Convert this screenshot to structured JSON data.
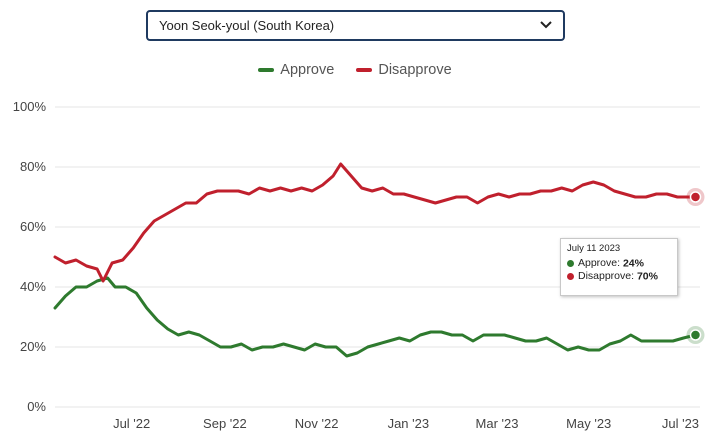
{
  "selector": {
    "label": "Yoon Seok-youl (South Korea)",
    "icon": "chevron-down-icon"
  },
  "legend": [
    {
      "label": "Approve",
      "color": "#2e7a2e"
    },
    {
      "label": "Disapprove",
      "color": "#c0202d"
    }
  ],
  "tooltip": {
    "date": "July 11 2023",
    "rows": [
      {
        "name": "Approve:",
        "value": "24%",
        "color": "#2e7a2e"
      },
      {
        "name": "Disapprove:",
        "value": "70%",
        "color": "#c0202d"
      }
    ]
  },
  "chart_data": {
    "type": "line",
    "y_ticks": [
      "100%",
      "80%",
      "60%",
      "40%",
      "20%",
      "0%"
    ],
    "ylim": [
      0,
      100
    ],
    "x_ticks": [
      "Jul '22",
      "Sep '22",
      "Nov '22",
      "Jan '23",
      "Mar '23",
      "May '23",
      "Jul '23"
    ],
    "x_tick_dates": [
      "2022-07-01",
      "2022-09-01",
      "2022-11-01",
      "2023-01-01",
      "2023-03-01",
      "2023-05-01",
      "2023-07-01"
    ],
    "xlim": [
      "2022-05-11",
      "2023-07-14"
    ],
    "grid": true,
    "legend_position": "top-center",
    "series": [
      {
        "name": "Approve",
        "color": "#2e7a2e",
        "points": [
          [
            "2022-05-11",
            33
          ],
          [
            "2022-05-18",
            37
          ],
          [
            "2022-05-25",
            40
          ],
          [
            "2022-06-01",
            40
          ],
          [
            "2022-06-08",
            42
          ],
          [
            "2022-06-15",
            43
          ],
          [
            "2022-06-20",
            40
          ],
          [
            "2022-06-27",
            40
          ],
          [
            "2022-07-04",
            38
          ],
          [
            "2022-07-11",
            33
          ],
          [
            "2022-07-18",
            29
          ],
          [
            "2022-07-25",
            26
          ],
          [
            "2022-08-01",
            24
          ],
          [
            "2022-08-08",
            25
          ],
          [
            "2022-08-15",
            24
          ],
          [
            "2022-08-22",
            22
          ],
          [
            "2022-08-29",
            20
          ],
          [
            "2022-09-05",
            20
          ],
          [
            "2022-09-12",
            21
          ],
          [
            "2022-09-19",
            19
          ],
          [
            "2022-09-26",
            20
          ],
          [
            "2022-10-03",
            20
          ],
          [
            "2022-10-10",
            21
          ],
          [
            "2022-10-17",
            20
          ],
          [
            "2022-10-24",
            19
          ],
          [
            "2022-10-31",
            21
          ],
          [
            "2022-11-07",
            20
          ],
          [
            "2022-11-14",
            20
          ],
          [
            "2022-11-21",
            17
          ],
          [
            "2022-11-28",
            18
          ],
          [
            "2022-12-05",
            20
          ],
          [
            "2022-12-12",
            21
          ],
          [
            "2022-12-19",
            22
          ],
          [
            "2022-12-26",
            23
          ],
          [
            "2023-01-02",
            22
          ],
          [
            "2023-01-09",
            24
          ],
          [
            "2023-01-16",
            25
          ],
          [
            "2023-01-23",
            25
          ],
          [
            "2023-01-30",
            24
          ],
          [
            "2023-02-06",
            24
          ],
          [
            "2023-02-13",
            22
          ],
          [
            "2023-02-20",
            24
          ],
          [
            "2023-02-27",
            24
          ],
          [
            "2023-03-06",
            24
          ],
          [
            "2023-03-13",
            23
          ],
          [
            "2023-03-20",
            22
          ],
          [
            "2023-03-27",
            22
          ],
          [
            "2023-04-03",
            23
          ],
          [
            "2023-04-10",
            21
          ],
          [
            "2023-04-17",
            19
          ],
          [
            "2023-04-24",
            20
          ],
          [
            "2023-05-01",
            19
          ],
          [
            "2023-05-08",
            19
          ],
          [
            "2023-05-15",
            21
          ],
          [
            "2023-05-22",
            22
          ],
          [
            "2023-05-29",
            24
          ],
          [
            "2023-06-05",
            22
          ],
          [
            "2023-06-12",
            22
          ],
          [
            "2023-06-19",
            22
          ],
          [
            "2023-06-26",
            22
          ],
          [
            "2023-07-03",
            23
          ],
          [
            "2023-07-11",
            24
          ]
        ]
      },
      {
        "name": "Disapprove",
        "color": "#c0202d",
        "points": [
          [
            "2022-05-11",
            50
          ],
          [
            "2022-05-18",
            48
          ],
          [
            "2022-05-25",
            49
          ],
          [
            "2022-06-01",
            47
          ],
          [
            "2022-06-08",
            46
          ],
          [
            "2022-06-12",
            42
          ],
          [
            "2022-06-18",
            48
          ],
          [
            "2022-06-25",
            49
          ],
          [
            "2022-07-02",
            53
          ],
          [
            "2022-07-09",
            58
          ],
          [
            "2022-07-16",
            62
          ],
          [
            "2022-07-23",
            64
          ],
          [
            "2022-07-30",
            66
          ],
          [
            "2022-08-06",
            68
          ],
          [
            "2022-08-13",
            68
          ],
          [
            "2022-08-20",
            71
          ],
          [
            "2022-08-27",
            72
          ],
          [
            "2022-09-03",
            72
          ],
          [
            "2022-09-10",
            72
          ],
          [
            "2022-09-17",
            71
          ],
          [
            "2022-09-24",
            73
          ],
          [
            "2022-10-01",
            72
          ],
          [
            "2022-10-08",
            73
          ],
          [
            "2022-10-15",
            72
          ],
          [
            "2022-10-22",
            73
          ],
          [
            "2022-10-29",
            72
          ],
          [
            "2022-11-05",
            74
          ],
          [
            "2022-11-12",
            77
          ],
          [
            "2022-11-17",
            81
          ],
          [
            "2022-11-24",
            77
          ],
          [
            "2022-12-01",
            73
          ],
          [
            "2022-12-08",
            72
          ],
          [
            "2022-12-15",
            73
          ],
          [
            "2022-12-22",
            71
          ],
          [
            "2022-12-29",
            71
          ],
          [
            "2023-01-05",
            70
          ],
          [
            "2023-01-12",
            69
          ],
          [
            "2023-01-19",
            68
          ],
          [
            "2023-01-26",
            69
          ],
          [
            "2023-02-02",
            70
          ],
          [
            "2023-02-09",
            70
          ],
          [
            "2023-02-16",
            68
          ],
          [
            "2023-02-23",
            70
          ],
          [
            "2023-03-02",
            71
          ],
          [
            "2023-03-09",
            70
          ],
          [
            "2023-03-16",
            71
          ],
          [
            "2023-03-23",
            71
          ],
          [
            "2023-03-30",
            72
          ],
          [
            "2023-04-06",
            72
          ],
          [
            "2023-04-13",
            73
          ],
          [
            "2023-04-20",
            72
          ],
          [
            "2023-04-27",
            74
          ],
          [
            "2023-05-04",
            75
          ],
          [
            "2023-05-11",
            74
          ],
          [
            "2023-05-18",
            72
          ],
          [
            "2023-05-25",
            71
          ],
          [
            "2023-06-01",
            70
          ],
          [
            "2023-06-08",
            70
          ],
          [
            "2023-06-15",
            71
          ],
          [
            "2023-06-22",
            71
          ],
          [
            "2023-06-29",
            70
          ],
          [
            "2023-07-05",
            70
          ],
          [
            "2023-07-11",
            70
          ]
        ]
      }
    ]
  }
}
